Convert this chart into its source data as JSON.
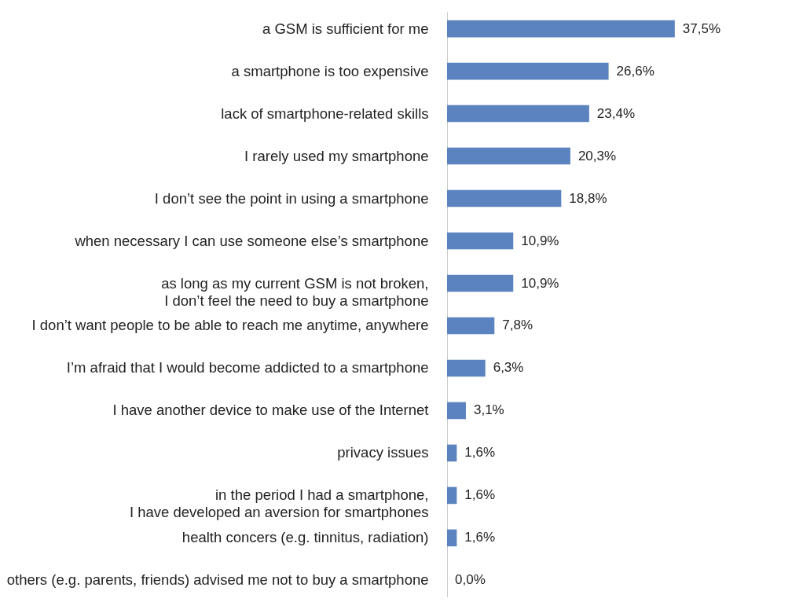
{
  "chart_data": {
    "type": "bar",
    "orientation": "horizontal",
    "categories": [
      "a GSM is sufficient for me",
      "a smartphone is too expensive",
      "lack of smartphone-related skills",
      "I rarely used my smartphone",
      "I don’t see the point in using a smartphone",
      "when necessary I can use someone else’s smartphone",
      "as long as my current GSM is not broken,\nI don’t feel the need to buy a smartphone",
      "I don’t want people to be able to reach me anytime, anywhere",
      "I’m afraid that I would become addicted to a smartphone",
      "I have another device to make use of the Internet",
      "privacy issues",
      "in the period I had a smartphone,\nI have developed an aversion for smartphones",
      "health concers (e.g. tinnitus, radiation)",
      "others (e.g. parents, friends) advised me not to buy a smartphone"
    ],
    "values": [
      37.5,
      26.6,
      23.4,
      20.3,
      18.8,
      10.9,
      10.9,
      7.8,
      6.3,
      3.1,
      1.6,
      1.6,
      1.6,
      0.0
    ],
    "value_labels": [
      "37,5%",
      "26,6%",
      "23,4%",
      "20,3%",
      "18,8%",
      "10,9%",
      "10,9%",
      "7,8%",
      "6,3%",
      "3,1%",
      "1,6%",
      "1,6%",
      "1,6%",
      "0,0%"
    ],
    "color": "#5b83bf",
    "tick_labels": "y"
  }
}
